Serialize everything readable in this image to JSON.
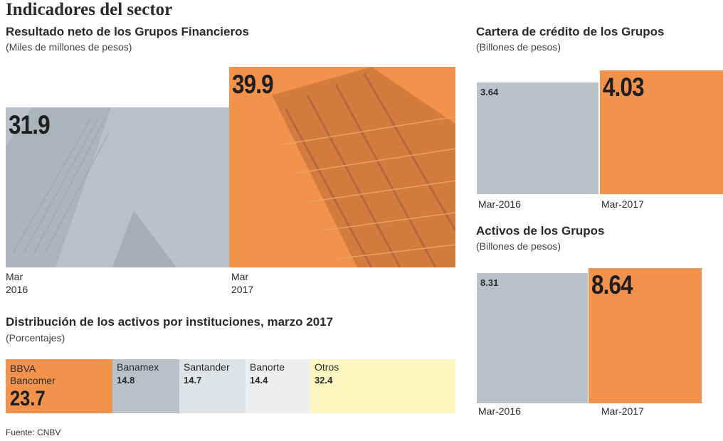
{
  "title": "Indicadores del sector",
  "source": "Fuente: CNBV",
  "colors": {
    "gray": "#b7c2c9",
    "orange": "#f1934d",
    "light_gray": "#dfe3e6",
    "lighter_gray": "#eceeef",
    "yellow": "#fdf6c0"
  },
  "chart_data": [
    {
      "type": "bar",
      "title": "Resultado neto de los Grupos Financieros",
      "subtitle": "(Miles de millones de pesos)",
      "categories": [
        "Mar\n2016",
        "Mar\n2017"
      ],
      "values": [
        31.9,
        39.9
      ],
      "value_labels": [
        "31.9",
        "39.9"
      ]
    },
    {
      "type": "bar",
      "title": "Cartera de crédito de los Grupos",
      "subtitle": "(Billones de pesos)",
      "categories": [
        "Mar-2016",
        "Mar-2017"
      ],
      "values": [
        3.64,
        4.03
      ],
      "value_labels": [
        "3.64",
        "4.03"
      ]
    },
    {
      "type": "bar",
      "title": "Activos de los Grupos",
      "subtitle": "(Billones de pesos)",
      "categories": [
        "Mar-2016",
        "Mar-2017"
      ],
      "values": [
        8.31,
        8.64
      ],
      "value_labels": [
        "8.31",
        "8.64"
      ]
    },
    {
      "type": "bar",
      "orientation": "stacked-horizontal",
      "title": "Distribución de los activos por instituciones, marzo 2017",
      "subtitle": "(Porcentajes)",
      "categories": [
        "BBVA\nBancomer",
        "Banamex",
        "Santander",
        "Banorte",
        "Otros"
      ],
      "values": [
        23.7,
        14.8,
        14.7,
        14.4,
        32.4
      ],
      "value_labels": [
        "23.7",
        "14.8",
        "14.7",
        "14.4",
        "32.4"
      ]
    }
  ]
}
